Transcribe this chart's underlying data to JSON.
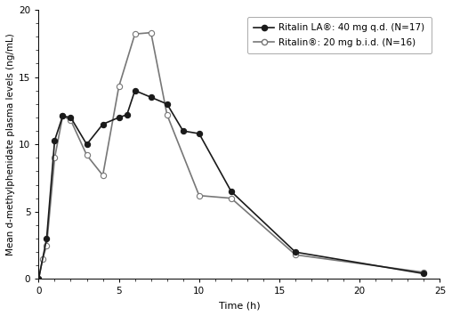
{
  "ritalin_la_x": [
    0,
    0.5,
    1,
    1.5,
    2,
    3,
    4,
    5,
    5.5,
    6,
    7,
    8,
    9,
    10,
    12,
    16,
    24
  ],
  "ritalin_la_y": [
    0,
    3.0,
    10.3,
    12.1,
    12.0,
    10.0,
    11.5,
    12.0,
    12.2,
    14.0,
    13.5,
    13.0,
    11.0,
    10.8,
    6.5,
    2.0,
    0.4
  ],
  "ritalin_x": [
    0,
    0.25,
    0.5,
    1,
    1.5,
    2,
    3,
    4,
    5,
    6,
    7,
    8,
    10,
    12,
    16,
    24
  ],
  "ritalin_y": [
    0,
    1.5,
    2.5,
    9.0,
    12.1,
    11.8,
    9.2,
    7.7,
    14.3,
    18.2,
    18.3,
    12.2,
    6.2,
    6.0,
    1.8,
    0.5
  ],
  "xlabel": "Time (h)",
  "ylabel": "Mean d-methylphenidate plasma levels (ng/mL)",
  "xlim": [
    0,
    25
  ],
  "ylim": [
    0,
    20
  ],
  "xticks": [
    0,
    5,
    10,
    15,
    20,
    25
  ],
  "yticks": [
    0,
    5,
    10,
    15,
    20
  ],
  "legend1": "Ritalin LA®: 40 mg q.d. (N=17)",
  "legend2": "Ritalin®: 20 mg b.i.d. (N=16)",
  "color_dark": "#1a1a1a",
  "color_light": "#777777",
  "linewidth": 1.2,
  "markersize": 4.5,
  "fontsize_ticks": 7.5,
  "fontsize_axis": 8,
  "fontsize_legend": 7.5
}
